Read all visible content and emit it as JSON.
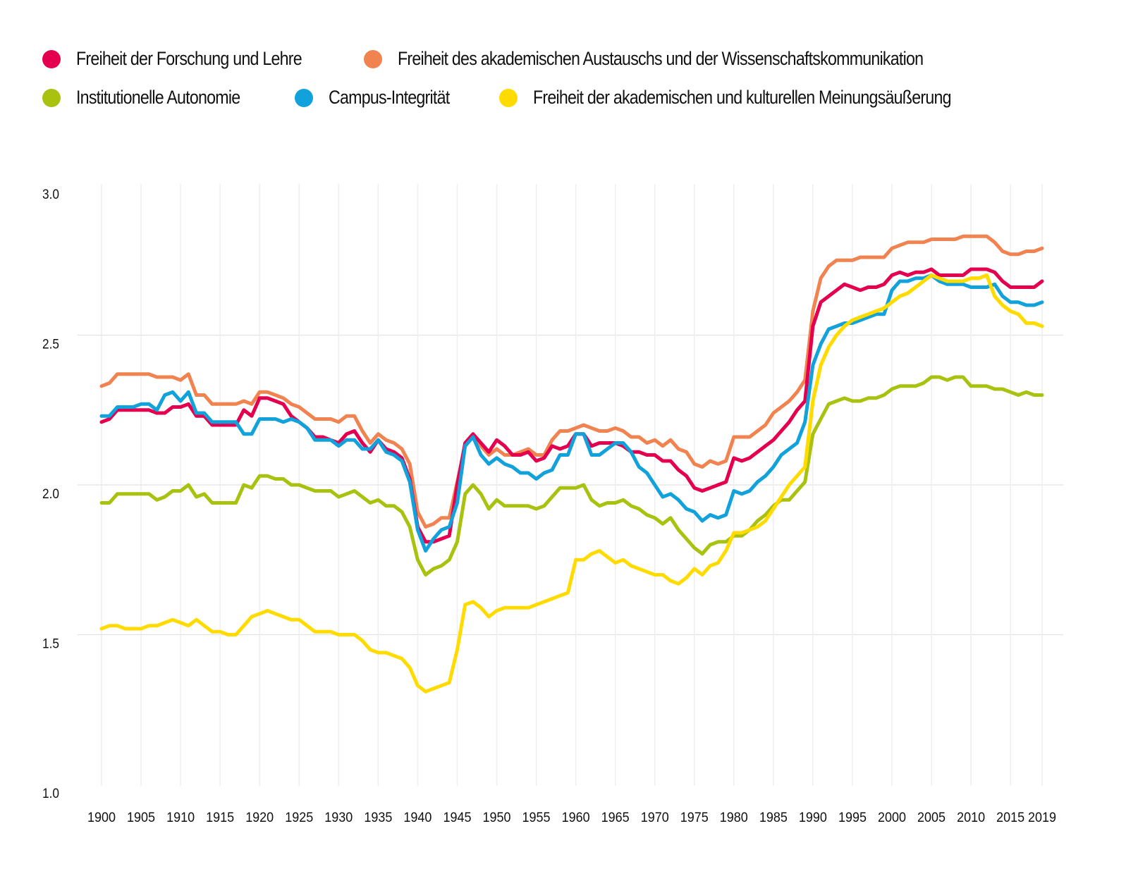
{
  "chart_data": {
    "type": "line",
    "title": "",
    "xlabel": "",
    "ylabel": "",
    "ylim": [
      1.0,
      3.0
    ],
    "xlim": [
      1900,
      2019
    ],
    "grid": "on",
    "legend_position": "top",
    "y_ticks": [
      "1.0",
      "1.5",
      "2.0",
      "2.5",
      "3.0"
    ],
    "x_ticks": [
      "1900",
      "1905",
      "1910",
      "1915",
      "1920",
      "1925",
      "1930",
      "1935",
      "1940",
      "1945",
      "1950",
      "1955",
      "1960",
      "1965",
      "1970",
      "1975",
      "1980",
      "1985",
      "1990",
      "1995",
      "2000",
      "2005",
      "2010",
      "2015",
      "2019"
    ],
    "x": [
      1900,
      1901,
      1902,
      1903,
      1904,
      1905,
      1906,
      1907,
      1908,
      1909,
      1910,
      1911,
      1912,
      1913,
      1914,
      1915,
      1916,
      1917,
      1918,
      1919,
      1920,
      1921,
      1922,
      1923,
      1924,
      1925,
      1926,
      1927,
      1928,
      1929,
      1930,
      1931,
      1932,
      1933,
      1934,
      1935,
      1936,
      1937,
      1938,
      1939,
      1940,
      1941,
      1942,
      1943,
      1944,
      1945,
      1946,
      1947,
      1948,
      1949,
      1950,
      1951,
      1952,
      1953,
      1954,
      1955,
      1956,
      1957,
      1958,
      1959,
      1960,
      1961,
      1962,
      1963,
      1964,
      1965,
      1966,
      1967,
      1968,
      1969,
      1970,
      1971,
      1972,
      1973,
      1974,
      1975,
      1976,
      1977,
      1978,
      1979,
      1980,
      1981,
      1982,
      1983,
      1984,
      1985,
      1986,
      1987,
      1988,
      1989,
      1990,
      1991,
      1992,
      1993,
      1994,
      1995,
      1996,
      1997,
      1998,
      1999,
      2000,
      2001,
      2002,
      2003,
      2004,
      2005,
      2006,
      2007,
      2008,
      2009,
      2010,
      2011,
      2012,
      2013,
      2014,
      2015,
      2016,
      2017,
      2018,
      2019
    ],
    "series": [
      {
        "name": "Freiheit der Forschung und Lehre",
        "color": "#E4004F",
        "values": [
          2.21,
          2.22,
          2.25,
          2.25,
          2.25,
          2.25,
          2.25,
          2.24,
          2.24,
          2.26,
          2.26,
          2.27,
          2.23,
          2.23,
          2.2,
          2.2,
          2.2,
          2.2,
          2.25,
          2.23,
          2.29,
          2.29,
          2.28,
          2.27,
          2.23,
          2.21,
          2.19,
          2.16,
          2.16,
          2.15,
          2.14,
          2.17,
          2.18,
          2.14,
          2.11,
          2.15,
          2.12,
          2.11,
          2.09,
          2.02,
          1.86,
          1.81,
          1.81,
          1.82,
          1.83,
          2.0,
          2.14,
          2.17,
          2.14,
          2.11,
          2.15,
          2.13,
          2.1,
          2.1,
          2.11,
          2.08,
          2.09,
          2.13,
          2.12,
          2.13,
          2.17,
          2.17,
          2.13,
          2.14,
          2.14,
          2.14,
          2.13,
          2.11,
          2.11,
          2.1,
          2.1,
          2.08,
          2.08,
          2.05,
          2.03,
          1.99,
          1.98,
          1.99,
          2.0,
          2.01,
          2.09,
          2.08,
          2.09,
          2.11,
          2.13,
          2.15,
          2.18,
          2.21,
          2.25,
          2.28,
          2.53,
          2.61,
          2.63,
          2.65,
          2.67,
          2.66,
          2.65,
          2.66,
          2.66,
          2.67,
          2.7,
          2.71,
          2.7,
          2.71,
          2.71,
          2.72,
          2.7,
          2.7,
          2.7,
          2.7,
          2.72,
          2.72,
          2.72,
          2.71,
          2.68,
          2.66,
          2.66,
          2.66,
          2.66,
          2.68
        ]
      },
      {
        "name": "Freiheit des akademischen Austauschs und der Wissenschaftskommunikation",
        "color": "#F0834F",
        "values": [
          2.33,
          2.34,
          2.37,
          2.37,
          2.37,
          2.37,
          2.37,
          2.36,
          2.36,
          2.36,
          2.35,
          2.37,
          2.3,
          2.3,
          2.27,
          2.27,
          2.27,
          2.27,
          2.28,
          2.27,
          2.31,
          2.31,
          2.3,
          2.29,
          2.27,
          2.26,
          2.24,
          2.22,
          2.22,
          2.22,
          2.21,
          2.23,
          2.23,
          2.18,
          2.14,
          2.17,
          2.15,
          2.14,
          2.12,
          2.07,
          1.91,
          1.86,
          1.87,
          1.89,
          1.89,
          2.01,
          2.13,
          2.17,
          2.13,
          2.1,
          2.12,
          2.1,
          2.1,
          2.11,
          2.12,
          2.1,
          2.1,
          2.15,
          2.18,
          2.18,
          2.19,
          2.2,
          2.19,
          2.18,
          2.18,
          2.19,
          2.18,
          2.16,
          2.16,
          2.14,
          2.15,
          2.13,
          2.15,
          2.12,
          2.11,
          2.07,
          2.06,
          2.08,
          2.07,
          2.08,
          2.16,
          2.16,
          2.16,
          2.18,
          2.2,
          2.24,
          2.26,
          2.28,
          2.31,
          2.35,
          2.58,
          2.69,
          2.73,
          2.75,
          2.75,
          2.75,
          2.76,
          2.76,
          2.76,
          2.76,
          2.79,
          2.8,
          2.81,
          2.81,
          2.81,
          2.82,
          2.82,
          2.82,
          2.82,
          2.83,
          2.83,
          2.83,
          2.83,
          2.81,
          2.78,
          2.77,
          2.77,
          2.78,
          2.78,
          2.79
        ]
      },
      {
        "name": "Institutionelle Autonomie",
        "color": "#A9C20F",
        "values": [
          1.94,
          1.94,
          1.97,
          1.97,
          1.97,
          1.97,
          1.97,
          1.95,
          1.96,
          1.98,
          1.98,
          2.0,
          1.96,
          1.97,
          1.94,
          1.94,
          1.94,
          1.94,
          2.0,
          1.99,
          2.03,
          2.03,
          2.02,
          2.02,
          2.0,
          2.0,
          1.99,
          1.98,
          1.98,
          1.98,
          1.96,
          1.97,
          1.98,
          1.96,
          1.94,
          1.95,
          1.93,
          1.93,
          1.91,
          1.86,
          1.75,
          1.7,
          1.72,
          1.73,
          1.75,
          1.81,
          1.97,
          2.0,
          1.97,
          1.92,
          1.95,
          1.93,
          1.93,
          1.93,
          1.93,
          1.92,
          1.93,
          1.96,
          1.99,
          1.99,
          1.99,
          2.0,
          1.95,
          1.93,
          1.94,
          1.94,
          1.95,
          1.93,
          1.92,
          1.9,
          1.89,
          1.87,
          1.89,
          1.85,
          1.82,
          1.79,
          1.77,
          1.8,
          1.81,
          1.81,
          1.83,
          1.83,
          1.85,
          1.88,
          1.9,
          1.93,
          1.95,
          1.95,
          1.98,
          2.01,
          2.17,
          2.22,
          2.27,
          2.28,
          2.29,
          2.28,
          2.28,
          2.29,
          2.29,
          2.3,
          2.32,
          2.33,
          2.33,
          2.33,
          2.34,
          2.36,
          2.36,
          2.35,
          2.36,
          2.36,
          2.33,
          2.33,
          2.33,
          2.32,
          2.32,
          2.31,
          2.3,
          2.31,
          2.3,
          2.3
        ]
      },
      {
        "name": "Campus-Integrität",
        "color": "#11A1DB",
        "values": [
          2.23,
          2.23,
          2.26,
          2.26,
          2.26,
          2.27,
          2.27,
          2.25,
          2.3,
          2.31,
          2.28,
          2.31,
          2.24,
          2.24,
          2.21,
          2.21,
          2.21,
          2.21,
          2.17,
          2.17,
          2.22,
          2.22,
          2.22,
          2.21,
          2.22,
          2.21,
          2.19,
          2.15,
          2.15,
          2.15,
          2.13,
          2.15,
          2.15,
          2.12,
          2.12,
          2.15,
          2.11,
          2.1,
          2.08,
          2.01,
          1.85,
          1.78,
          1.82,
          1.85,
          1.86,
          1.94,
          2.13,
          2.16,
          2.1,
          2.07,
          2.09,
          2.07,
          2.06,
          2.04,
          2.04,
          2.02,
          2.04,
          2.05,
          2.1,
          2.1,
          2.17,
          2.17,
          2.1,
          2.1,
          2.12,
          2.14,
          2.14,
          2.11,
          2.06,
          2.04,
          2.0,
          1.96,
          1.97,
          1.95,
          1.92,
          1.91,
          1.88,
          1.9,
          1.89,
          1.9,
          1.98,
          1.97,
          1.98,
          2.01,
          2.03,
          2.06,
          2.1,
          2.12,
          2.14,
          2.21,
          2.4,
          2.47,
          2.52,
          2.53,
          2.54,
          2.54,
          2.55,
          2.56,
          2.57,
          2.57,
          2.65,
          2.68,
          2.68,
          2.69,
          2.69,
          2.7,
          2.68,
          2.67,
          2.67,
          2.67,
          2.66,
          2.66,
          2.66,
          2.67,
          2.63,
          2.61,
          2.61,
          2.6,
          2.6,
          2.61
        ]
      },
      {
        "name": "Freiheit der akademischen und kulturellen Meinungsäußerung",
        "color": "#FFDB00",
        "values": [
          1.52,
          1.53,
          1.53,
          1.52,
          1.52,
          1.52,
          1.53,
          1.53,
          1.54,
          1.55,
          1.54,
          1.53,
          1.55,
          1.53,
          1.51,
          1.51,
          1.5,
          1.5,
          1.53,
          1.56,
          1.57,
          1.58,
          1.57,
          1.56,
          1.55,
          1.55,
          1.53,
          1.51,
          1.51,
          1.51,
          1.5,
          1.5,
          1.5,
          1.48,
          1.45,
          1.44,
          1.44,
          1.43,
          1.42,
          1.39,
          1.33,
          1.31,
          1.32,
          1.33,
          1.34,
          1.45,
          1.6,
          1.61,
          1.59,
          1.56,
          1.58,
          1.59,
          1.59,
          1.59,
          1.59,
          1.6,
          1.61,
          1.62,
          1.63,
          1.64,
          1.75,
          1.75,
          1.77,
          1.78,
          1.76,
          1.74,
          1.75,
          1.73,
          1.72,
          1.71,
          1.7,
          1.7,
          1.68,
          1.67,
          1.69,
          1.72,
          1.7,
          1.73,
          1.74,
          1.78,
          1.84,
          1.84,
          1.85,
          1.86,
          1.88,
          1.92,
          1.96,
          2.0,
          2.03,
          2.06,
          2.28,
          2.4,
          2.46,
          2.5,
          2.53,
          2.55,
          2.56,
          2.57,
          2.58,
          2.59,
          2.61,
          2.63,
          2.64,
          2.66,
          2.68,
          2.7,
          2.69,
          2.68,
          2.68,
          2.68,
          2.69,
          2.69,
          2.7,
          2.63,
          2.6,
          2.58,
          2.57,
          2.54,
          2.54,
          2.53
        ]
      }
    ]
  }
}
